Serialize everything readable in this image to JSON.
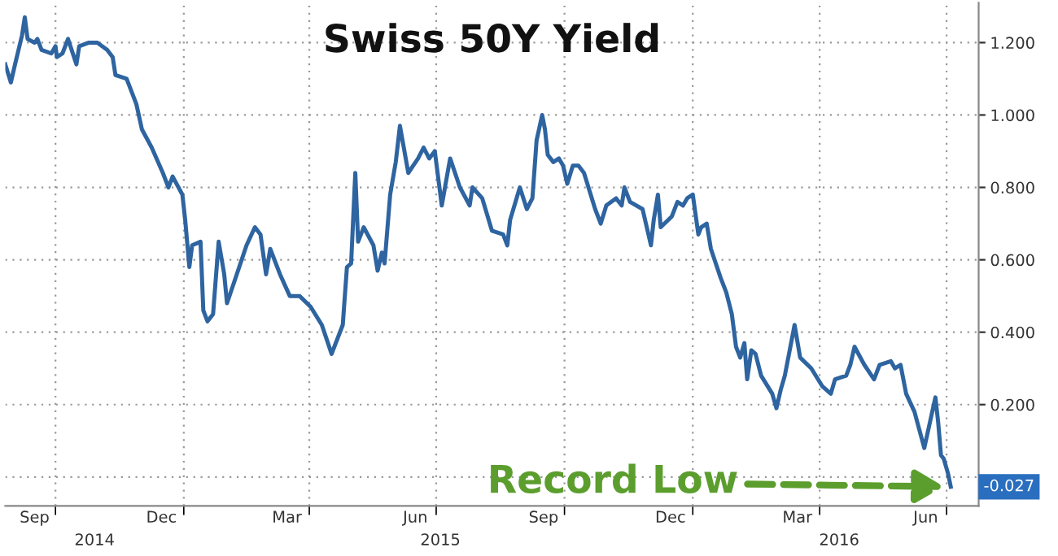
{
  "chart_data": {
    "type": "line",
    "title": "Swiss 50Y Yield",
    "x": [
      "2014-08-26",
      "2014-08-30",
      "2014-09-02",
      "2014-09-07",
      "2014-09-09",
      "2014-09-11",
      "2014-09-16",
      "2014-09-18",
      "2014-09-21",
      "2014-09-28",
      "2014-10-01",
      "2014-10-02",
      "2014-10-06",
      "2014-10-10",
      "2014-10-16",
      "2014-10-18",
      "2014-10-25",
      "2014-10-31",
      "2014-11-07",
      "2014-11-11",
      "2014-11-13",
      "2014-11-21",
      "2014-11-28",
      "2014-12-02",
      "2014-12-09",
      "2014-12-17",
      "2014-12-21",
      "2014-12-24",
      "2014-12-31",
      "2015-01-02",
      "2015-01-05",
      "2015-01-07",
      "2015-01-13",
      "2015-01-15",
      "2015-01-18",
      "2015-01-22",
      "2015-01-26",
      "2015-01-30",
      "2015-02-01",
      "2015-02-08",
      "2015-02-15",
      "2015-02-21",
      "2015-02-25",
      "2015-03-01",
      "2015-03-04",
      "2015-03-11",
      "2015-03-18",
      "2015-03-25",
      "2015-04-02",
      "2015-04-10",
      "2015-04-17",
      "2015-04-25",
      "2015-04-28",
      "2015-05-01",
      "2015-05-04",
      "2015-05-06",
      "2015-05-10",
      "2015-05-17",
      "2015-05-20",
      "2015-05-23",
      "2015-05-25",
      "2015-05-29",
      "2015-06-02",
      "2015-06-05",
      "2015-06-11",
      "2015-06-18",
      "2015-06-22",
      "2015-06-26",
      "2015-06-30",
      "2015-07-05",
      "2015-07-11",
      "2015-07-18",
      "2015-07-25",
      "2015-07-27",
      "2015-08-03",
      "2015-08-10",
      "2015-08-18",
      "2015-08-21",
      "2015-08-23",
      "2015-08-30",
      "2015-09-04",
      "2015-09-08",
      "2015-09-11",
      "2015-09-15",
      "2015-09-17",
      "2015-09-19",
      "2015-09-23",
      "2015-09-27",
      "2015-09-30",
      "2015-10-03",
      "2015-10-07",
      "2015-10-11",
      "2015-10-15",
      "2015-10-23",
      "2015-10-27",
      "2015-10-31",
      "2015-11-07",
      "2015-11-11",
      "2015-11-13",
      "2015-11-17",
      "2015-11-26",
      "2015-12-02",
      "2015-12-04",
      "2015-12-07",
      "2015-12-09",
      "2015-12-17",
      "2015-12-21",
      "2015-12-25",
      "2015-12-28",
      "2016-01-01",
      "2016-01-05",
      "2016-01-07",
      "2016-01-11",
      "2016-01-14",
      "2016-01-21",
      "2016-01-25",
      "2016-01-29",
      "2016-02-01",
      "2016-02-04",
      "2016-02-07",
      "2016-02-09",
      "2016-02-12",
      "2016-02-15",
      "2016-02-19",
      "2016-02-27",
      "2016-03-01",
      "2016-03-04",
      "2016-03-07",
      "2016-03-11",
      "2016-03-14",
      "2016-03-18",
      "2016-03-26",
      "2016-04-03",
      "2016-04-09",
      "2016-04-12",
      "2016-04-20",
      "2016-04-23",
      "2016-04-26",
      "2016-05-03",
      "2016-05-10",
      "2016-05-14",
      "2016-05-22",
      "2016-05-25",
      "2016-05-29",
      "2016-06-02",
      "2016-06-08",
      "2016-06-15",
      "2016-06-19",
      "2016-06-23",
      "2016-06-25",
      "2016-06-27",
      "2016-06-29",
      "2016-07-02",
      "2016-07-04"
    ],
    "series": [
      {
        "color": "#2e64a0",
        "values": [
          1.14,
          1.09,
          1.14,
          1.22,
          1.27,
          1.21,
          1.2,
          1.21,
          1.18,
          1.17,
          1.19,
          1.16,
          1.17,
          1.21,
          1.14,
          1.19,
          1.2,
          1.2,
          1.18,
          1.16,
          1.11,
          1.1,
          1.03,
          0.96,
          0.91,
          0.84,
          0.8,
          0.83,
          0.78,
          0.71,
          0.58,
          0.64,
          0.65,
          0.46,
          0.43,
          0.45,
          0.65,
          0.56,
          0.48,
          0.56,
          0.64,
          0.69,
          0.67,
          0.56,
          0.63,
          0.56,
          0.5,
          0.5,
          0.47,
          0.42,
          0.34,
          0.42,
          0.58,
          0.59,
          0.84,
          0.65,
          0.69,
          0.64,
          0.57,
          0.62,
          0.59,
          0.78,
          0.87,
          0.97,
          0.84,
          0.88,
          0.91,
          0.88,
          0.9,
          0.75,
          0.88,
          0.8,
          0.75,
          0.8,
          0.77,
          0.68,
          0.67,
          0.64,
          0.71,
          0.8,
          0.74,
          0.77,
          0.93,
          1.0,
          0.96,
          0.89,
          0.87,
          0.88,
          0.86,
          0.81,
          0.86,
          0.86,
          0.84,
          0.74,
          0.7,
          0.75,
          0.77,
          0.75,
          0.8,
          0.76,
          0.74,
          0.64,
          0.71,
          0.78,
          0.69,
          0.72,
          0.76,
          0.75,
          0.77,
          0.78,
          0.67,
          0.69,
          0.7,
          0.63,
          0.55,
          0.51,
          0.45,
          0.36,
          0.33,
          0.37,
          0.27,
          0.35,
          0.34,
          0.28,
          0.23,
          0.19,
          0.24,
          0.28,
          0.36,
          0.42,
          0.33,
          0.3,
          0.25,
          0.23,
          0.27,
          0.28,
          0.31,
          0.36,
          0.31,
          0.27,
          0.31,
          0.32,
          0.3,
          0.31,
          0.23,
          0.18,
          0.08,
          0.15,
          0.22,
          0.15,
          0.06,
          0.05,
          0.01,
          -0.027
        ]
      }
    ],
    "xlim": [
      "2014-08-26",
      "2016-07-24"
    ],
    "xticks": [
      {
        "value": "2014-09-16",
        "label": "Sep"
      },
      {
        "value": "2014-12-16",
        "label": "Dec"
      },
      {
        "value": "2015-03-16",
        "label": "Mar"
      },
      {
        "value": "2015-06-16",
        "label": "Jun"
      },
      {
        "value": "2015-09-16",
        "label": "Sep"
      },
      {
        "value": "2015-12-16",
        "label": "Dec"
      },
      {
        "value": "2016-03-16",
        "label": "Mar"
      },
      {
        "value": "2016-06-16",
        "label": "Jun"
      },
      {
        "value": "2014-10-01",
        "label": null
      },
      {
        "value": "2015-01-01",
        "label": null
      },
      {
        "value": "2015-04-01",
        "label": null
      },
      {
        "value": "2015-07-01",
        "label": null
      },
      {
        "value": "2015-10-01",
        "label": null
      },
      {
        "value": "2016-01-01",
        "label": null
      },
      {
        "value": "2016-04-01",
        "label": null
      },
      {
        "value": "2016-07-01",
        "label": null
      }
    ],
    "x2lim": [
      "2014-08-26",
      "2016-07-24"
    ],
    "x2ticks": [
      {
        "value": "2014-10-29",
        "label": "2014"
      },
      {
        "value": "2015-07-04",
        "label": "2015"
      },
      {
        "value": "2016-04-15",
        "label": "2016"
      }
    ],
    "ylim": [
      -0.08,
      1.31
    ],
    "yticks": [
      {
        "value": 0,
        "label": null
      },
      {
        "value": 0.2,
        "label": "0.200"
      },
      {
        "value": 0.4,
        "label": "0.400"
      },
      {
        "value": 0.6,
        "label": "0.600"
      },
      {
        "value": 0.8,
        "label": "0.800"
      },
      {
        "value": 1.0,
        "label": "1.000"
      },
      {
        "value": 1.2,
        "label": "1.200"
      }
    ],
    "grid": true,
    "line_style": "solid",
    "marker": "none",
    "annotations": [
      {
        "text": "-0.027",
        "x": "2016-07-04",
        "y": -0.027
      },
      {
        "text": "Record Low",
        "x": "2016-07-04",
        "y": -0.027
      }
    ]
  }
}
